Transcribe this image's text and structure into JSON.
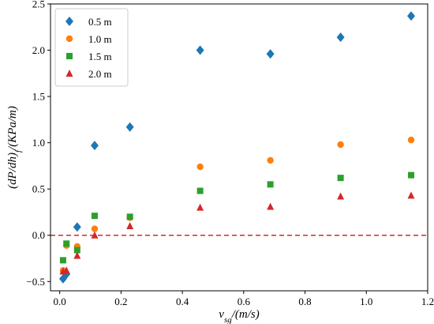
{
  "chart_data": {
    "type": "scatter",
    "xlabel": "v_sg/(m/s)",
    "ylabel": "(dP/dh)_f/(KPa/m)",
    "xlim": [
      -0.03,
      1.2
    ],
    "ylim": [
      -0.6,
      2.5
    ],
    "x_ticks": [
      0.0,
      0.2,
      0.4,
      0.6,
      0.8,
      1.0,
      1.2
    ],
    "x_tick_labels": [
      "0.0",
      "0.2",
      "0.4",
      "0.6",
      "0.8",
      "1.0",
      "1.2"
    ],
    "y_ticks": [
      -0.5,
      0.0,
      0.5,
      1.0,
      1.5,
      2.0,
      2.5
    ],
    "y_tick_labels": [
      "−0.5",
      "0.0",
      "0.5",
      "1.0",
      "1.5",
      "2.0",
      "2.5"
    ],
    "grid": false,
    "legend_position": "top-left",
    "reference_line": {
      "y": 0.0,
      "style": "dashed",
      "color": "#d62728"
    },
    "series": [
      {
        "name": "0.5 m",
        "marker": "diamond",
        "color": "#1f77b4",
        "x": [
          0.011,
          0.022,
          0.057,
          0.114,
          0.229,
          0.458,
          0.687,
          0.916,
          1.146
        ],
        "y": [
          -0.47,
          -0.42,
          0.09,
          0.97,
          1.17,
          2.0,
          1.96,
          2.14,
          2.37
        ]
      },
      {
        "name": "1.0 m",
        "marker": "circle",
        "color": "#ff7f0e",
        "x": [
          0.011,
          0.022,
          0.057,
          0.114,
          0.229,
          0.458,
          0.687,
          0.916,
          1.146
        ],
        "y": [
          -0.38,
          -0.11,
          -0.12,
          0.07,
          0.19,
          0.74,
          0.81,
          0.98,
          1.03
        ]
      },
      {
        "name": "1.5 m",
        "marker": "square",
        "color": "#2ca02c",
        "x": [
          0.011,
          0.022,
          0.057,
          0.114,
          0.229,
          0.458,
          0.687,
          0.916,
          1.146
        ],
        "y": [
          -0.27,
          -0.09,
          -0.16,
          0.21,
          0.2,
          0.48,
          0.55,
          0.62,
          0.65
        ]
      },
      {
        "name": "2.0 m",
        "marker": "triangle",
        "color": "#d62728",
        "x": [
          0.011,
          0.022,
          0.057,
          0.114,
          0.229,
          0.458,
          0.687,
          0.916,
          1.146
        ],
        "y": [
          -0.39,
          -0.38,
          -0.22,
          0.0,
          0.1,
          0.3,
          0.31,
          0.42,
          0.43
        ]
      }
    ]
  }
}
